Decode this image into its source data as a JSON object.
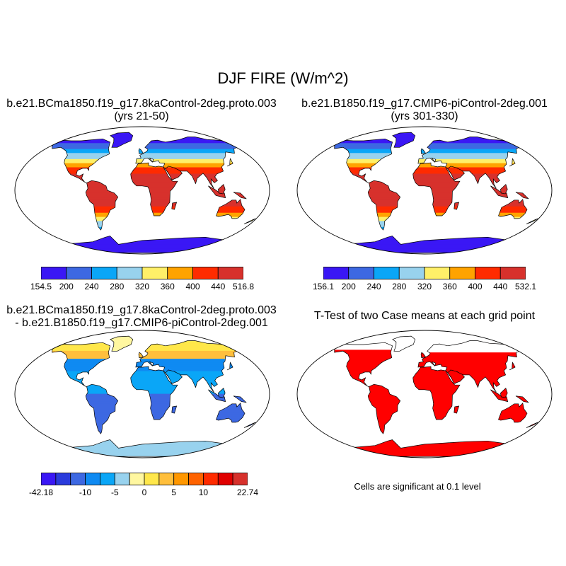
{
  "title": "DJF FIRE (W/m^2)",
  "colors": {
    "abs_scale": [
      "#3a17f5",
      "#3d68e2",
      "#0aa6f7",
      "#98d2ee",
      "#fff068",
      "#ffa300",
      "#ff2b00",
      "#d7312c"
    ],
    "diff_scale": [
      "#3a17f5",
      "#2a3bdc",
      "#3d68e2",
      "#0f8af2",
      "#0aa6f7",
      "#98d2ee",
      "#fff7a0",
      "#ffe74a",
      "#ffbf3c",
      "#ff9700",
      "#ff6300",
      "#ff2b00",
      "#e00000",
      "#d7312c"
    ],
    "significant": "#ff0000"
  },
  "panels": [
    {
      "id": "case1",
      "title_line1": "b.e21.BCma1850.f19_g17.8kaControl-2deg.proto.003",
      "title_line2": "(yrs 21-50)",
      "colorbar_labels": [
        "154.5",
        "200",
        "240",
        "280",
        "320",
        "360",
        "400",
        "440",
        "516.8"
      ]
    },
    {
      "id": "case2",
      "title_line1": "b.e21.B1850.f19_g17.CMIP6-piControl-2deg.001",
      "title_line2": "(yrs 301-330)",
      "colorbar_labels": [
        "156.1",
        "200",
        "240",
        "280",
        "320",
        "360",
        "400",
        "440",
        "532.1"
      ]
    },
    {
      "id": "diff",
      "title_line1": "b.e21.BCma1850.f19_g17.8kaControl-2deg.proto.003",
      "title_line2": "- b.e21.B1850.f19_g17.CMIP6-piControl-2deg.001",
      "colorbar_labels": [
        "-42.18",
        "-10",
        "-5",
        "0",
        "5",
        "10",
        "22.74"
      ]
    },
    {
      "id": "ttest",
      "title_line1": "T-Test of two Case means at each grid point",
      "note": "Cells are significant at 0.1 level"
    }
  ]
}
